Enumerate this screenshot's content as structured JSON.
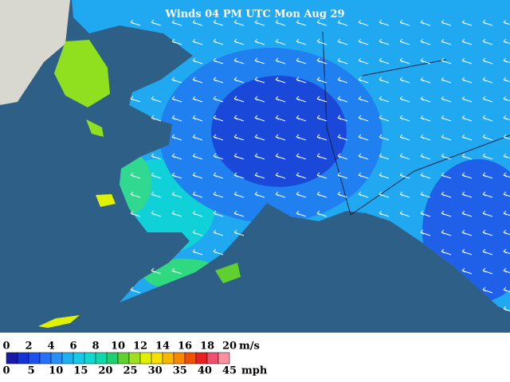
{
  "title": "Winds 04 PM UTC Mon Aug 29",
  "legend": {
    "colors": [
      "#1a1aa8",
      "#1432d8",
      "#1e50f0",
      "#2870f8",
      "#2890f8",
      "#20b0f0",
      "#18c8e8",
      "#10d8d0",
      "#10d8a8",
      "#20d070",
      "#60d030",
      "#a0e020",
      "#e0f000",
      "#f8e000",
      "#f8b800",
      "#f88800",
      "#f05000",
      "#e82020",
      "#f05070",
      "#f890a0"
    ],
    "ms_labels": [
      0,
      2,
      4,
      6,
      8,
      10,
      12,
      14,
      16,
      18,
      20
    ],
    "ms_unit": "m/s",
    "mph_labels": [
      0,
      5,
      10,
      15,
      20,
      25,
      30,
      35,
      40,
      45
    ],
    "mph_unit": "mph"
  }
}
